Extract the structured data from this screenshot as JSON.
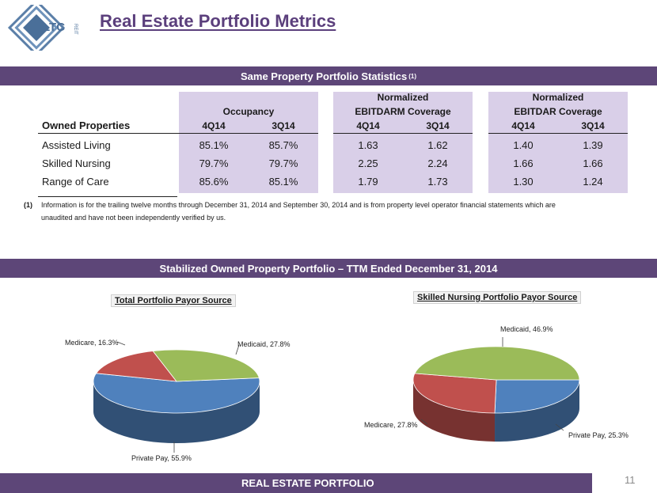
{
  "header": {
    "title": "Real Estate Portfolio Metrics",
    "logo_text": "LTC",
    "logo_sub": "REIT"
  },
  "stats": {
    "band_title": "Same Property Portfolio Statistics",
    "band_sup": "(1)",
    "groups": [
      "Occupancy",
      "Normalized",
      "EBITDARM Coverage",
      "Normalized",
      "EBITDAR Coverage"
    ],
    "row_header": "Owned Properties",
    "periods": [
      "4Q14",
      "3Q14",
      "4Q14",
      "3Q14",
      "4Q14",
      "3Q14"
    ],
    "rows": [
      {
        "label": "Assisted Living",
        "values": [
          "85.1%",
          "85.7%",
          "1.63",
          "1.62",
          "1.40",
          "1.39"
        ]
      },
      {
        "label": "Skilled Nursing",
        "values": [
          "79.7%",
          "79.7%",
          "2.25",
          "2.24",
          "1.66",
          "1.66"
        ]
      },
      {
        "label": "Range of Care",
        "values": [
          "85.6%",
          "85.1%",
          "1.79",
          "1.73",
          "1.30",
          "1.24"
        ]
      }
    ],
    "footnote_marker": "(1)",
    "footnote_line1": "Information is for the trailing twelve months through December 31, 2014 and September 30, 2014 and is from property level operator financial statements which are",
    "footnote_line2": "unaudited and have not been independently verified by us."
  },
  "portfolio": {
    "band_title": "Stabilized Owned Property Portfolio – TTM Ended December 31, 2014"
  },
  "chart_data": [
    {
      "type": "pie",
      "title": "Total Portfolio Payor Source",
      "slices": [
        {
          "name": "Private Pay",
          "value": 55.9,
          "label": "Private Pay, 55.9%",
          "color": "#4f81bd"
        },
        {
          "name": "Medicare",
          "value": 16.3,
          "label": "Medicare, 16.3%",
          "color": "#c0504d"
        },
        {
          "name": "Medicaid",
          "value": 27.8,
          "label": "Medicaid, 27.8%",
          "color": "#9bbb59"
        }
      ]
    },
    {
      "type": "pie",
      "title": "Skilled Nursing Portfolio Payor Source",
      "slices": [
        {
          "name": "Private Pay",
          "value": 25.3,
          "label": "Private Pay, 25.3%",
          "color": "#4f81bd"
        },
        {
          "name": "Medicare",
          "value": 27.8,
          "label": "Medicare, 27.8%",
          "color": "#c0504d"
        },
        {
          "name": "Medicaid",
          "value": 46.9,
          "label": "Medicaid, 46.9%",
          "color": "#9bbb59"
        }
      ]
    }
  ],
  "footer": {
    "label": "REAL ESTATE PORTFOLIO",
    "page_number": "11"
  }
}
